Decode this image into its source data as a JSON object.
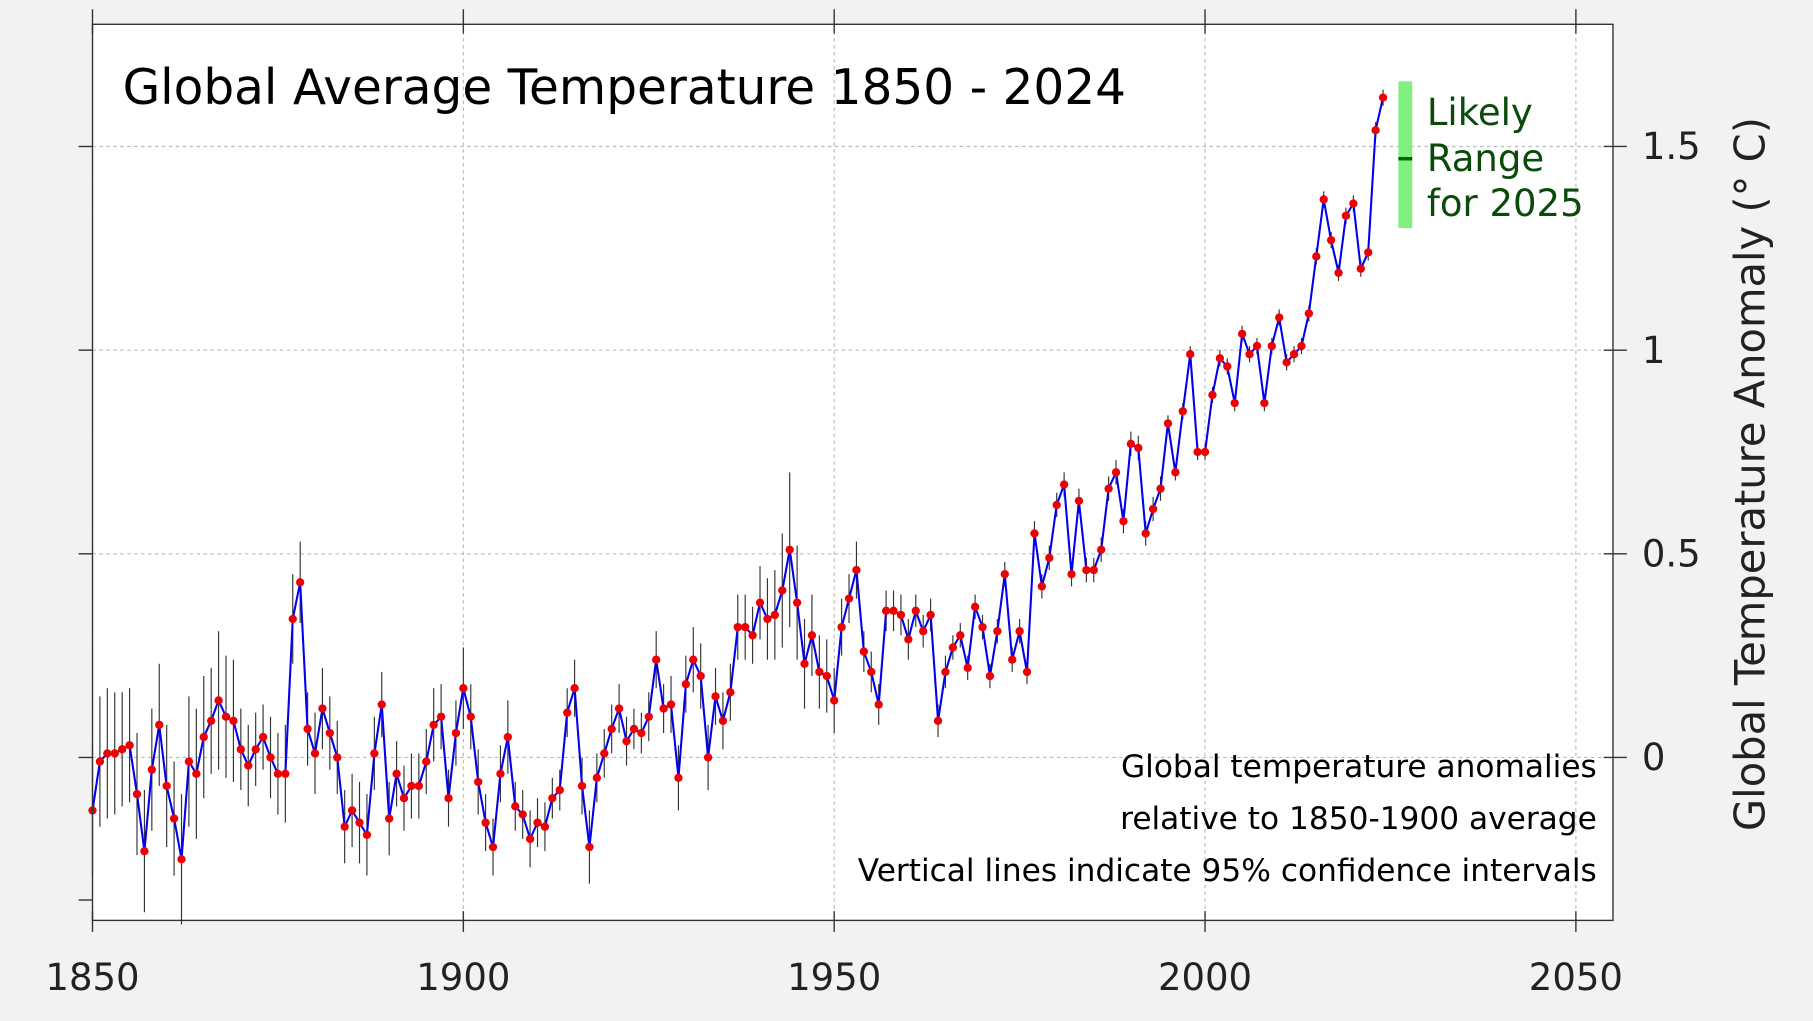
{
  "chart_data": {
    "type": "line",
    "title": "Global Average Temperature 1850 - 2024",
    "xlabel": "",
    "ylabel": "Global Temperature Anomaly (° C)",
    "xlim": [
      1850,
      2055
    ],
    "ylim": [
      -0.4,
      1.8
    ],
    "xticks": [
      1850,
      1900,
      1950,
      2000,
      2050
    ],
    "xtick_labels": [
      "1850",
      "1900",
      "1950",
      "2000",
      "2050"
    ],
    "yticks": [
      0,
      0.5,
      1,
      1.5
    ],
    "ytick_labels": [
      "0",
      "0.5",
      "1",
      "1.5"
    ],
    "yaxis_side": "right",
    "grid": true,
    "colors": {
      "line": "#0000ee",
      "points": "#ee0000",
      "error_bars": "#333333",
      "likely_range": "#80f080",
      "likely_center": "#006400",
      "likely_text": "#0a4a0a"
    },
    "x_start": 1850,
    "x_end": 2024,
    "values": [
      -0.13,
      -0.01,
      0.01,
      0.01,
      0.02,
      0.03,
      -0.09,
      -0.23,
      -0.03,
      0.08,
      -0.07,
      -0.15,
      -0.25,
      -0.01,
      -0.04,
      0.05,
      0.09,
      0.14,
      0.1,
      0.09,
      0.02,
      -0.02,
      0.02,
      0.05,
      0.0,
      -0.04,
      -0.04,
      0.34,
      0.43,
      0.07,
      0.01,
      0.12,
      0.06,
      0.0,
      -0.17,
      -0.13,
      -0.16,
      -0.19,
      0.01,
      0.13,
      -0.15,
      -0.04,
      -0.1,
      -0.07,
      -0.07,
      -0.01,
      0.08,
      0.1,
      -0.1,
      0.06,
      0.17,
      0.1,
      -0.06,
      -0.16,
      -0.22,
      -0.04,
      0.05,
      -0.12,
      -0.14,
      -0.2,
      -0.16,
      -0.17,
      -0.1,
      -0.08,
      0.11,
      0.17,
      -0.07,
      -0.22,
      -0.05,
      0.01,
      0.07,
      0.12,
      0.04,
      0.07,
      0.06,
      0.1,
      0.24,
      0.12,
      0.13,
      -0.05,
      0.18,
      0.24,
      0.2,
      0.0,
      0.15,
      0.09,
      0.16,
      0.32,
      0.32,
      0.3,
      0.38,
      0.34,
      0.35,
      0.41,
      0.51,
      0.38,
      0.23,
      0.3,
      0.21,
      0.2,
      0.14,
      0.32,
      0.39,
      0.46,
      0.26,
      0.21,
      0.13,
      0.36,
      0.36,
      0.35,
      0.29,
      0.36,
      0.31,
      0.35,
      0.09,
      0.21,
      0.27,
      0.3,
      0.22,
      0.37,
      0.32,
      0.2,
      0.31,
      0.45,
      0.24,
      0.31,
      0.21,
      0.55,
      0.42,
      0.49,
      0.62,
      0.67,
      0.45,
      0.63,
      0.46,
      0.46,
      0.51,
      0.66,
      0.7,
      0.58,
      0.77,
      0.76,
      0.55,
      0.61,
      0.66,
      0.82,
      0.7,
      0.85,
      0.99,
      0.75,
      0.75,
      0.89,
      0.98,
      0.96,
      0.87,
      1.04,
      0.99,
      1.01,
      0.87,
      1.01,
      1.08,
      0.97,
      0.99,
      1.01,
      1.09,
      1.23,
      1.37,
      1.27,
      1.19,
      1.33,
      1.36,
      1.2,
      1.24,
      1.54,
      1.62
    ],
    "ci95_halfwidth": [
      0.16,
      0.16,
      0.16,
      0.15,
      0.14,
      0.14,
      0.15,
      0.15,
      0.15,
      0.15,
      0.15,
      0.14,
      0.16,
      0.16,
      0.16,
      0.15,
      0.13,
      0.17,
      0.15,
      0.15,
      0.1,
      0.1,
      0.09,
      0.08,
      0.1,
      0.1,
      0.12,
      0.11,
      0.1,
      0.09,
      0.1,
      0.1,
      0.09,
      0.09,
      0.09,
      0.09,
      0.1,
      0.1,
      0.09,
      0.08,
      0.09,
      0.08,
      0.08,
      0.08,
      0.08,
      0.08,
      0.09,
      0.08,
      0.07,
      0.08,
      0.1,
      0.08,
      0.08,
      0.07,
      0.07,
      0.07,
      0.09,
      0.06,
      0.06,
      0.07,
      0.06,
      0.06,
      0.05,
      0.05,
      0.06,
      0.07,
      0.07,
      0.09,
      0.06,
      0.06,
      0.06,
      0.06,
      0.06,
      0.05,
      0.05,
      0.06,
      0.07,
      0.06,
      0.07,
      0.08,
      0.07,
      0.08,
      0.08,
      0.08,
      0.07,
      0.07,
      0.07,
      0.08,
      0.08,
      0.07,
      0.09,
      0.1,
      0.11,
      0.14,
      0.19,
      0.14,
      0.11,
      0.1,
      0.09,
      0.09,
      0.08,
      0.07,
      0.06,
      0.07,
      0.05,
      0.05,
      0.05,
      0.05,
      0.05,
      0.05,
      0.05,
      0.04,
      0.04,
      0.04,
      0.04,
      0.04,
      0.03,
      0.03,
      0.03,
      0.03,
      0.03,
      0.03,
      0.03,
      0.03,
      0.03,
      0.03,
      0.03,
      0.03,
      0.03,
      0.03,
      0.03,
      0.03,
      0.03,
      0.03,
      0.03,
      0.03,
      0.03,
      0.03,
      0.03,
      0.03,
      0.03,
      0.03,
      0.03,
      0.03,
      0.03,
      0.02,
      0.02,
      0.02,
      0.02,
      0.02,
      0.02,
      0.02,
      0.02,
      0.02,
      0.02,
      0.02,
      0.02,
      0.02,
      0.02,
      0.02,
      0.02,
      0.02,
      0.02,
      0.02,
      0.02,
      0.02,
      0.02,
      0.02,
      0.02,
      0.02,
      0.02,
      0.02,
      0.02,
      0.02,
      0.02
    ],
    "likely_range_2025": {
      "label_lines": [
        "Likely",
        "Range",
        "for 2025"
      ],
      "low": 1.3,
      "high": 1.66,
      "center": 1.47,
      "year": 2027
    },
    "annotations": [
      "Global temperature anomalies",
      "relative to 1850-1900 average",
      "Vertical lines indicate 95% confidence intervals"
    ]
  }
}
